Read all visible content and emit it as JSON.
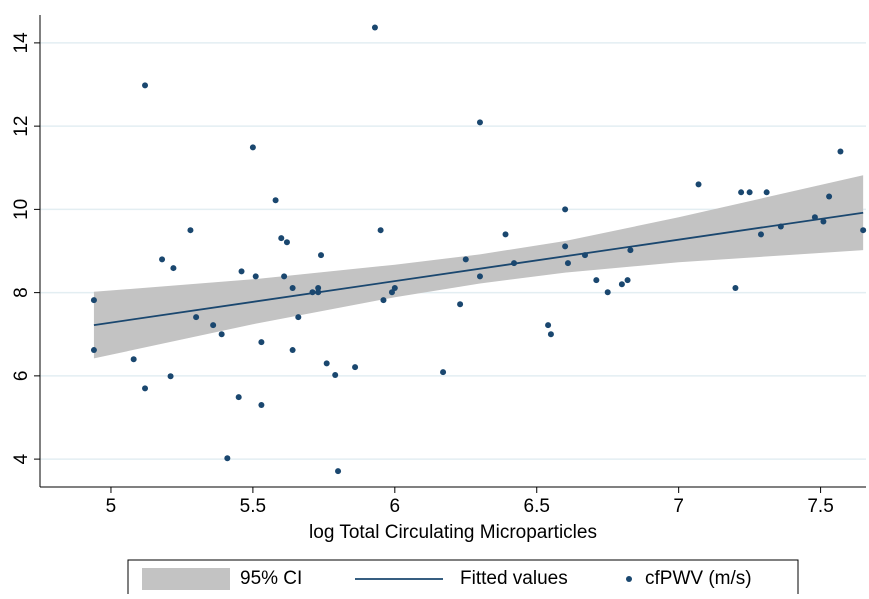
{
  "chart_data": {
    "type": "scatter",
    "x_label": "log Total Circulating Microparticles",
    "xlim": [
      4.75,
      7.66
    ],
    "ylim": [
      3.33,
      14.67
    ],
    "xticks": [
      5,
      5.5,
      6,
      6.5,
      7,
      7.5
    ],
    "yticks": [
      4,
      6,
      8,
      10,
      12,
      14
    ],
    "grid": true,
    "legend": "bottom",
    "series": [
      {
        "name": "95% CI",
        "type": "band",
        "color": "#c3c3c3",
        "x": [
          4.94,
          5.5,
          6.0,
          6.3,
          6.6,
          7.0,
          7.65
        ],
        "upper": [
          8.02,
          8.32,
          8.67,
          8.92,
          9.24,
          9.81,
          10.82
        ],
        "lower": [
          6.42,
          7.24,
          7.89,
          8.22,
          8.48,
          8.73,
          9.02
        ]
      },
      {
        "name": "Fitted values",
        "type": "line",
        "color": "#1a476f",
        "x": [
          4.94,
          7.65
        ],
        "values": [
          7.22,
          9.92
        ]
      },
      {
        "name": "cfPWV (m/s)",
        "type": "scatter",
        "color": "#1a476f",
        "x": [
          4.94,
          4.94,
          5.08,
          5.12,
          5.12,
          5.18,
          5.22,
          5.21,
          5.28,
          5.3,
          5.36,
          5.39,
          5.41,
          5.45,
          5.46,
          5.5,
          5.51,
          5.53,
          5.53,
          5.58,
          5.6,
          5.61,
          5.62,
          5.64,
          5.64,
          5.66,
          5.71,
          5.73,
          5.73,
          5.74,
          5.76,
          5.79,
          5.8,
          5.86,
          5.93,
          5.95,
          5.96,
          5.99,
          6.0,
          6.17,
          6.23,
          6.25,
          6.3,
          6.3,
          6.39,
          6.42,
          6.54,
          6.55,
          6.6,
          6.6,
          6.61,
          6.67,
          6.71,
          6.75,
          6.8,
          6.82,
          6.83,
          7.07,
          7.2,
          7.22,
          7.25,
          7.29,
          7.31,
          7.36,
          7.48,
          7.51,
          7.53,
          7.57,
          7.65
        ],
        "values": [
          7.82,
          6.62,
          6.4,
          12.98,
          5.7,
          8.8,
          8.59,
          5.99,
          9.5,
          7.41,
          7.22,
          7.0,
          4.02,
          5.49,
          8.51,
          11.49,
          8.39,
          6.81,
          5.3,
          10.22,
          9.31,
          8.39,
          9.21,
          8.11,
          6.62,
          7.41,
          8.01,
          8.01,
          8.11,
          8.9,
          6.3,
          6.02,
          3.71,
          6.21,
          14.37,
          9.5,
          7.82,
          8.01,
          8.11,
          6.09,
          7.72,
          8.8,
          8.39,
          12.09,
          9.4,
          8.71,
          7.22,
          7.0,
          10.0,
          9.11,
          8.71,
          8.9,
          8.3,
          8.01,
          8.2,
          8.3,
          9.02,
          10.6,
          8.11,
          10.41,
          10.41,
          9.4,
          10.41,
          9.59,
          9.81,
          9.71,
          10.31,
          11.39,
          9.5
        ]
      }
    ]
  }
}
